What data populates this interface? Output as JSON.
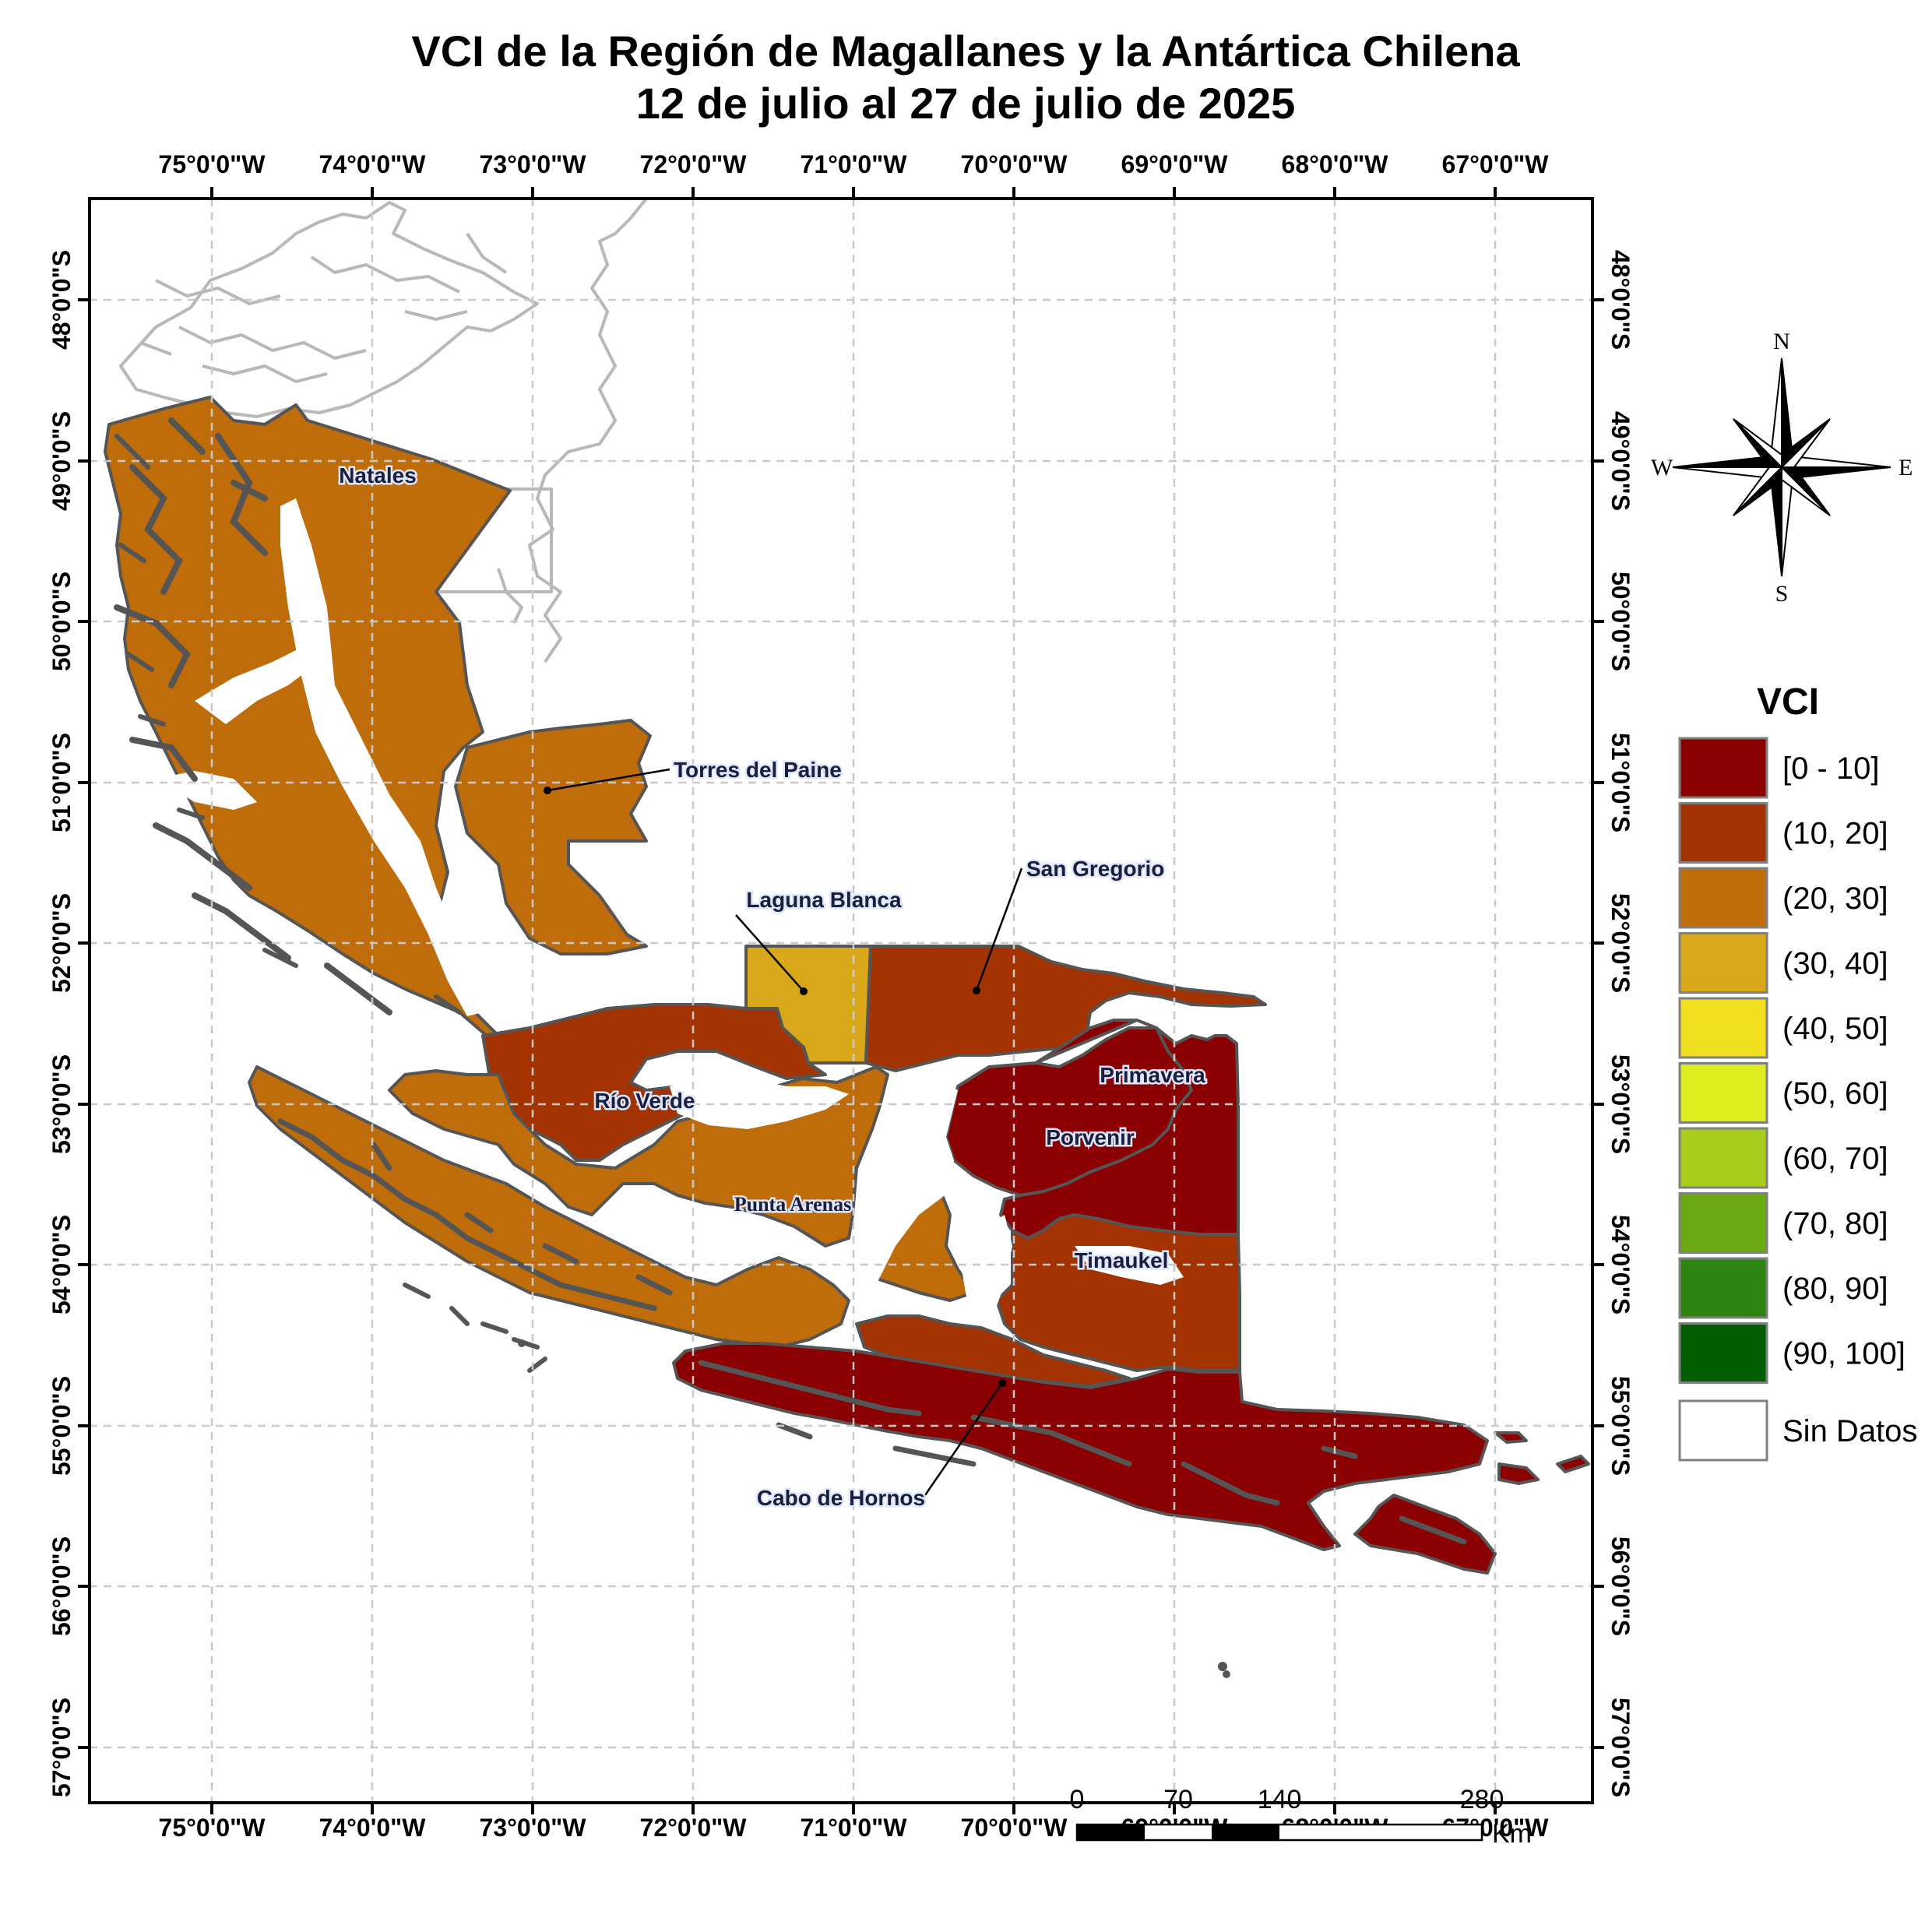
{
  "title": {
    "line1": "VCI de la Región de Magallanes y la Antártica Chilena",
    "line2": "12 de julio al 27 de julio de 2025"
  },
  "axes": {
    "lon_labels": [
      "75°0'0\"W",
      "74°0'0\"W",
      "73°0'0\"W",
      "72°0'0\"W",
      "71°0'0\"W",
      "70°0'0\"W",
      "69°0'0\"W",
      "68°0'0\"W",
      "67°0'0\"W"
    ],
    "lat_labels": [
      "48°0'0\"S",
      "49°0'0\"S",
      "50°0'0\"S",
      "51°0'0\"S",
      "52°0'0\"S",
      "53°0'0\"S",
      "54°0'0\"S",
      "55°0'0\"S",
      "56°0'0\"S",
      "57°0'0\"S"
    ],
    "lon_values": [
      -75,
      -74,
      -73,
      -72,
      -71,
      -70,
      -69,
      -68,
      -67
    ],
    "lat_values": [
      -48,
      -49,
      -50,
      -51,
      -52,
      -53,
      -54,
      -55,
      -56,
      -57
    ]
  },
  "municipalities": {
    "natales": "Natales",
    "torres_del_paine": "Torres del Paine",
    "laguna_blanca": "Laguna Blanca",
    "san_gregorio": "San Gregorio",
    "primavera": "Primavera",
    "porvenir": "Porvenir",
    "rio_verde": "Río Verde",
    "punta_arenas": "Punta Arenas",
    "timaukel": "Timaukel",
    "cabo_de_hornos": "Cabo de Hornos"
  },
  "municipality_classes": {
    "natales": "(20, 30]",
    "torres_del_paine": "(20, 30]",
    "laguna_blanca": "(30, 40]",
    "san_gregorio": "(10, 20]",
    "primavera": "[0 - 10]",
    "porvenir": "[0 - 10]",
    "rio_verde": "(10, 20]",
    "punta_arenas": "(20, 30]",
    "timaukel": "(10, 20]",
    "cabo_de_hornos": "[0 - 10]"
  },
  "legend": {
    "title": "VCI",
    "classes": [
      {
        "label": "[0 - 10]",
        "color": "#8b0000"
      },
      {
        "label": "(10, 20]",
        "color": "#a33300"
      },
      {
        "label": "(20, 30]",
        "color": "#bf6c0a"
      },
      {
        "label": "(30, 40]",
        "color": "#d9a81a"
      },
      {
        "label": "(40, 50]",
        "color": "#f0e020"
      },
      {
        "label": "(50, 60]",
        "color": "#dcec1c"
      },
      {
        "label": "(60, 70]",
        "color": "#a8cc1a"
      },
      {
        "label": "(70, 80]",
        "color": "#6aa814"
      },
      {
        "label": "(80, 90]",
        "color": "#2e8410"
      },
      {
        "label": "(90, 100]",
        "color": "#005e00"
      }
    ],
    "no_data": {
      "label": "Sin Datos",
      "color": "#ffffff"
    }
  },
  "compass": {
    "n": "N",
    "s": "S",
    "e": "E",
    "w": "W"
  },
  "scale_bar": {
    "ticks": [
      "0",
      "70",
      "140",
      "280"
    ],
    "unit": "Km"
  },
  "colors": {
    "boundary": "#555555",
    "outside_region": "#b8b8b8",
    "grid": "#c9c9c9"
  }
}
